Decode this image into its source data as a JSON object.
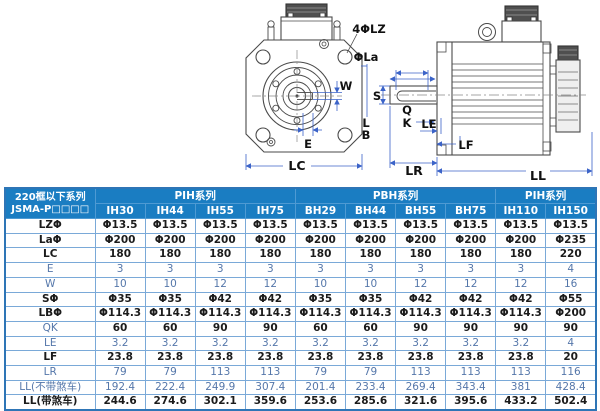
{
  "drawing": {
    "labels": {
      "lz": "4ΦLZ",
      "la": "ΦLa",
      "w": "W",
      "e": "E",
      "lc": "LC",
      "s": "S",
      "q": "Q",
      "k": "K",
      "l": "L",
      "b": "B",
      "le": "LE",
      "lf": "LF",
      "lr": "LR",
      "ll": "LL"
    }
  },
  "table": {
    "corner_header": {
      "line1": "220框以下系列",
      "line2": "JSMA-P□□□□"
    },
    "groups": [
      {
        "label": "PIH系列",
        "span": 4
      },
      {
        "label": "PBH系列",
        "span": 4
      },
      {
        "label": "PIH系列",
        "span": 2
      }
    ],
    "models": [
      "IH30",
      "IH44",
      "IH55",
      "IH75",
      "BH29",
      "BH44",
      "BH55",
      "BH75",
      "IH110",
      "IH150"
    ],
    "rows": [
      {
        "label": "LZΦ",
        "muted": false,
        "values": [
          "Φ13.5",
          "Φ13.5",
          "Φ13.5",
          "Φ13.5",
          "Φ13.5",
          "Φ13.5",
          "Φ13.5",
          "Φ13.5",
          "Φ13.5",
          "Φ13.5"
        ]
      },
      {
        "label": "LaΦ",
        "muted": false,
        "values": [
          "Φ200",
          "Φ200",
          "Φ200",
          "Φ200",
          "Φ200",
          "Φ200",
          "Φ200",
          "Φ200",
          "Φ200",
          "Φ235"
        ]
      },
      {
        "label": "LC",
        "muted": false,
        "values": [
          "180",
          "180",
          "180",
          "180",
          "180",
          "180",
          "180",
          "180",
          "180",
          "220"
        ]
      },
      {
        "label": "E",
        "muted": true,
        "values": [
          "3",
          "3",
          "3",
          "3",
          "3",
          "3",
          "3",
          "3",
          "3",
          "4"
        ]
      },
      {
        "label": "W",
        "muted": true,
        "values": [
          "10",
          "10",
          "12",
          "12",
          "10",
          "10",
          "12",
          "12",
          "12",
          "16"
        ]
      },
      {
        "label": "SΦ",
        "muted": false,
        "values": [
          "Φ35",
          "Φ35",
          "Φ42",
          "Φ42",
          "Φ35",
          "Φ35",
          "Φ42",
          "Φ42",
          "Φ42",
          "Φ55"
        ]
      },
      {
        "label": "LBΦ",
        "muted": false,
        "values": [
          "Φ114.3",
          "Φ114.3",
          "Φ114.3",
          "Φ114.3",
          "Φ114.3",
          "Φ114.3",
          "Φ114.3",
          "Φ114.3",
          "Φ114.3",
          "Φ200"
        ]
      },
      {
        "label": "QK",
        "muted": false,
        "label_muted": true,
        "values": [
          "60",
          "60",
          "90",
          "90",
          "60",
          "60",
          "90",
          "90",
          "90",
          "90"
        ]
      },
      {
        "label": "LE",
        "muted": true,
        "values": [
          "3.2",
          "3.2",
          "3.2",
          "3.2",
          "3.2",
          "3.2",
          "3.2",
          "3.2",
          "3.2",
          "4"
        ]
      },
      {
        "label": "LF",
        "muted": false,
        "values": [
          "23.8",
          "23.8",
          "23.8",
          "23.8",
          "23.8",
          "23.8",
          "23.8",
          "23.8",
          "23.8",
          "20"
        ]
      },
      {
        "label": "LR",
        "muted": true,
        "values": [
          "79",
          "79",
          "113",
          "113",
          "79",
          "79",
          "113",
          "113",
          "113",
          "116"
        ]
      },
      {
        "label": "LL(不带煞车)",
        "muted": true,
        "values": [
          "192.4",
          "222.4",
          "249.9",
          "307.4",
          "201.4",
          "233.4",
          "269.4",
          "343.4",
          "381",
          "428.4"
        ]
      },
      {
        "label": "LL(带煞车)",
        "muted": false,
        "values": [
          "244.6",
          "274.6",
          "302.1",
          "359.6",
          "253.6",
          "285.6",
          "321.6",
          "395.6",
          "433.2",
          "502.4"
        ]
      }
    ]
  },
  "colors": {
    "header_bg": "#1a7dc2",
    "table_border": "#2e75b6",
    "cell_border": "#7aa9d8",
    "dimension_line": "#3b63c8",
    "drawing_line": "#4a4a4a"
  }
}
